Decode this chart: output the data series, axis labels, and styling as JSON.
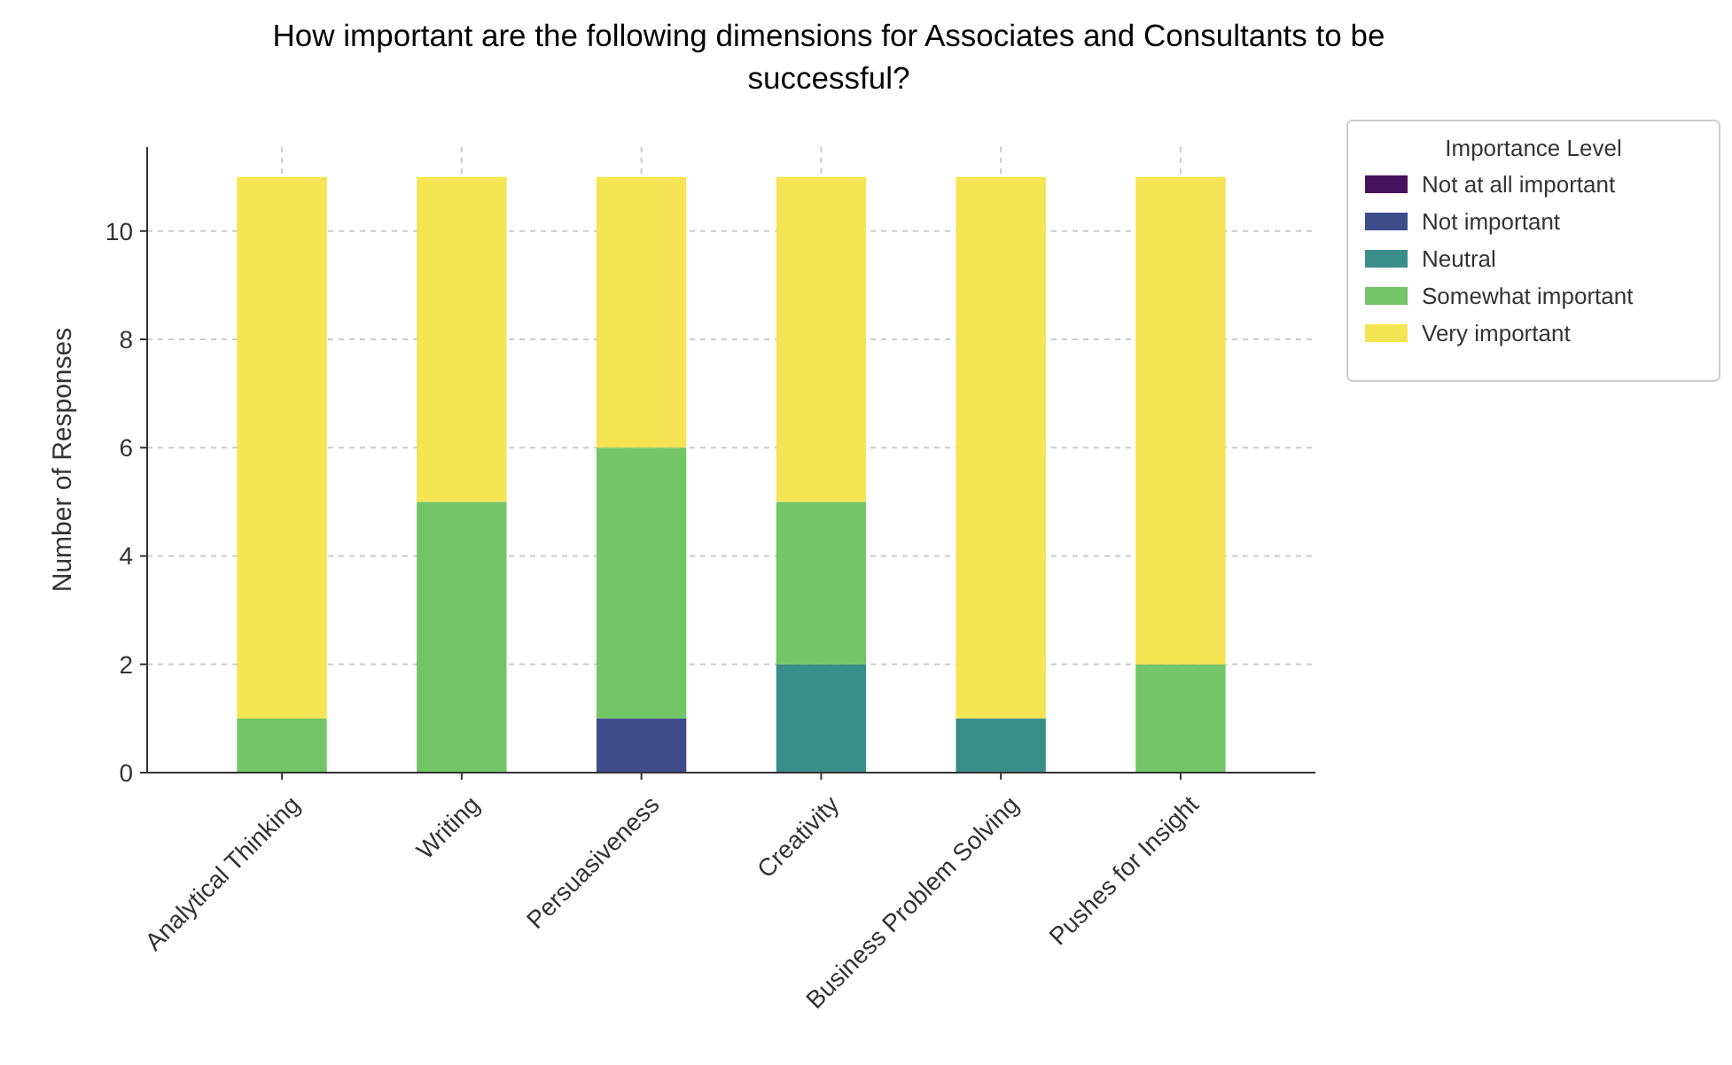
{
  "chart_data": {
    "type": "bar",
    "title": "How important are the following dimensions for Associates and Consultants to be successful?",
    "ylabel": "Number of Responses",
    "legend_title": "Importance Level",
    "categories": [
      "Analytical Thinking",
      "Writing",
      "Persuasiveness",
      "Creativity",
      "Business Problem Solving",
      "Pushes for Insight"
    ],
    "stacked": true,
    "series": [
      {
        "name": "Not at all important",
        "color": "#45115a",
        "values": [
          0,
          0,
          0,
          0,
          0,
          0
        ]
      },
      {
        "name": "Not important",
        "color": "#3e4c8a",
        "values": [
          0,
          0,
          1,
          0,
          0,
          0
        ]
      },
      {
        "name": "Neutral",
        "color": "#3a8e8a",
        "values": [
          0,
          0,
          0,
          2,
          1,
          0
        ]
      },
      {
        "name": "Somewhat important",
        "color": "#73c567",
        "values": [
          1,
          5,
          5,
          3,
          0,
          2
        ]
      },
      {
        "name": "Very important",
        "color": "#f5e453",
        "values": [
          10,
          6,
          5,
          6,
          10,
          9
        ]
      }
    ],
    "ylim": [
      0,
      11.55
    ],
    "yticks": [
      0,
      2,
      4,
      6,
      8,
      10
    ],
    "grid": true,
    "legend": "top right"
  }
}
